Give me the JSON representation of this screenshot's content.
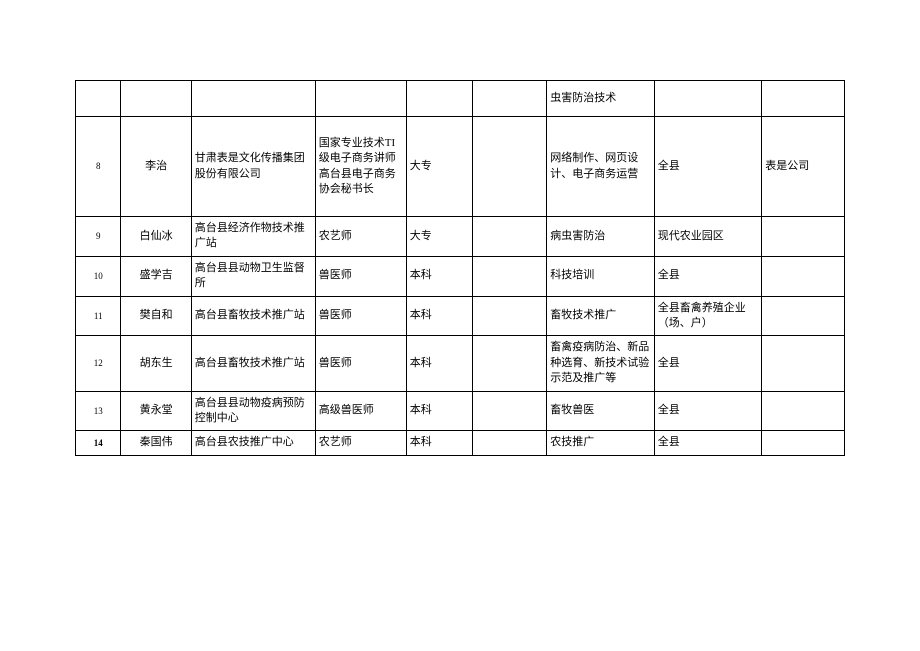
{
  "table": {
    "columns": {
      "widths_pct": [
        7,
        8,
        15,
        11,
        7,
        7,
        14,
        13,
        10
      ]
    },
    "rows": [
      {
        "idx": "",
        "name": "",
        "org": "",
        "title": "",
        "edu": "",
        "blank1": "",
        "spec": "虫害防治技术",
        "area": "",
        "remark": ""
      },
      {
        "idx": "8",
        "name": "李治",
        "org": "甘肃表是文化传播集团股份有限公司",
        "title": "国家专业技术TI级电子商务讲师高台县电子商务协会秘书长",
        "edu": "大专",
        "blank1": "",
        "spec": "网络制作、网页设计、电子商务运营",
        "area": "全县",
        "remark": "表是公司"
      },
      {
        "idx": "9",
        "name": "白仙冰",
        "org": "高台县经济作物技术推广站",
        "title": "农艺师",
        "edu": "大专",
        "blank1": "",
        "spec": "病虫害防治",
        "area": "现代农业园区",
        "remark": ""
      },
      {
        "idx": "10",
        "name": "盛学吉",
        "org": "高台县县动物卫生监督所",
        "title": "兽医师",
        "edu": "本科",
        "blank1": "",
        "spec": "科技培训",
        "area": "全县",
        "remark": ""
      },
      {
        "idx": "11",
        "name": "樊自和",
        "org": "高台县畜牧技术推广站",
        "title": "兽医师",
        "edu": "本科",
        "blank1": "",
        "spec": "畜牧技术推广",
        "area": "全县畜禽养殖企业（场、户）",
        "remark": ""
      },
      {
        "idx": "12",
        "name": "胡东生",
        "org": "高台县畜牧技术推广站",
        "title": "兽医师",
        "edu": "本科",
        "blank1": "",
        "spec": "畜禽疫病防治、新品种选育、新技术试验示范及推广等",
        "area": "全县",
        "remark": ""
      },
      {
        "idx": "13",
        "name": "黄永堂",
        "org": "高台县县动物疫病预防控制中心",
        "title": "高级兽医师",
        "edu": "本科",
        "blank1": "",
        "spec": "畜牧兽医",
        "area": "全县",
        "remark": ""
      },
      {
        "idx": "14",
        "name": "秦国伟",
        "org": "高台县农技推广中心",
        "title": "农艺师",
        "edu": "本科",
        "blank1": "",
        "spec": "农技推广",
        "area": "全县",
        "remark": "",
        "bold": true
      }
    ]
  }
}
